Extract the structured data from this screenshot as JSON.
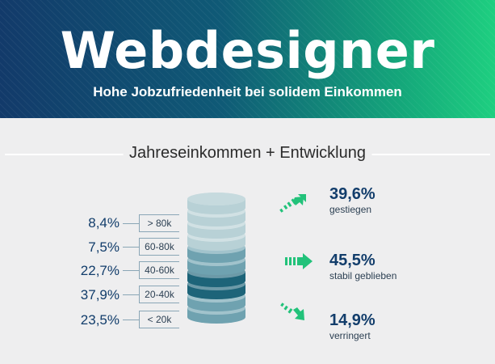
{
  "header": {
    "title": "Webdesigner",
    "subtitle": "Hohe Jobzufriedenheit bei solidem Einkommen"
  },
  "section": {
    "title": "Jahreseinkommen + Entwicklung"
  },
  "chart_data": [
    {
      "type": "bar",
      "title": "Jahreseinkommen",
      "categories": [
        "> 80k",
        "60-80k",
        "40-60k",
        "20-40k",
        "< 20k"
      ],
      "values": [
        8.4,
        7.5,
        22.7,
        37.9,
        23.5
      ],
      "value_labels": [
        "8,4%",
        "7,5%",
        "22,7%",
        "37,9%",
        "23,5%"
      ],
      "unit": "%"
    },
    {
      "type": "bar",
      "title": "Entwicklung",
      "categories": [
        "gestiegen",
        "stabil geblieben",
        "verringert"
      ],
      "values": [
        39.6,
        45.5,
        14.9
      ],
      "value_labels": [
        "39,6%",
        "45,5%",
        "14,9%"
      ],
      "unit": "%"
    }
  ],
  "colors": {
    "accent_green": "#22c27a",
    "dark_blue": "#123d6b",
    "coin_light": "#b8d1d6",
    "coin_mid": "#6fa2b0",
    "coin_dark": "#1d6479"
  },
  "icons": {
    "up": "arrow-up-right-icon",
    "right": "arrow-right-icon",
    "down": "arrow-down-right-icon"
  }
}
